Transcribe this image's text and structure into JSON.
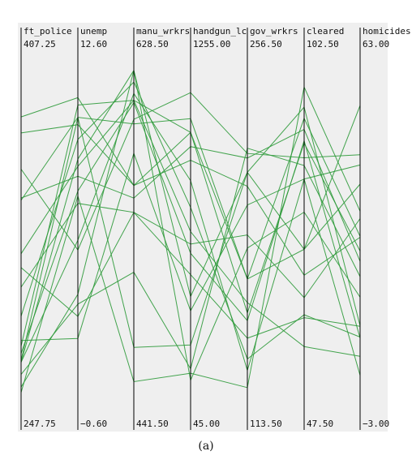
{
  "caption": "(a)",
  "colors": {
    "line": "#2e9a3a",
    "axis": "#000000",
    "background": "#efefef"
  },
  "chart_data": {
    "type": "parallel-coordinates",
    "axes": [
      {
        "name": "ft_police",
        "max": "407.25",
        "min": "247.75",
        "vmax": 407.25,
        "vmin": 247.75
      },
      {
        "name": "unemp",
        "max": "12.60",
        "min": "−0.60",
        "vmax": 12.6,
        "vmin": -0.6
      },
      {
        "name": "manu_wrkrs",
        "max": "628.50",
        "min": "441.50",
        "vmax": 628.5,
        "vmin": 441.5
      },
      {
        "name": "handgun_lc",
        "max": "1255.00",
        "min": "45.00",
        "vmax": 1255.0,
        "vmin": 45.0
      },
      {
        "name": "gov_wrkrs",
        "max": "256.50",
        "min": "113.50",
        "vmax": 256.5,
        "vmin": 113.5
      },
      {
        "name": "cleared",
        "max": "102.50",
        "min": "47.50",
        "vmax": 102.5,
        "vmin": 47.5
      },
      {
        "name": "homicides",
        "max": "63.00",
        "min": "−3.00",
        "vmax": 63.0,
        "vmin": -3.0
      }
    ],
    "records": [
      [
        383.3,
        11.4,
        560.9,
        1015.3,
        163.6,
        71.8,
        39.4
      ],
      [
        375.4,
        10.3,
        560.9,
        911.7,
        204.4,
        67.4,
        28.6
      ],
      [
        357.6,
        5.2,
        599.0,
        1163.5,
        218.9,
        87.3,
        45.4
      ],
      [
        343.4,
        8.2,
        553.6,
        962.5,
        216.9,
        92.1,
        23.7
      ],
      [
        342.3,
        10.6,
        596.4,
        1066.6,
        163.6,
        94.0,
        28.8
      ],
      [
        316.0,
        8.6,
        610.0,
        1015.3,
        148.6,
        89.8,
        25.8
      ],
      [
        309.2,
        2.5,
        545.4,
        599.0,
        183.0,
        63.6,
        32.4
      ],
      [
        299.6,
        7.1,
        545.4,
        484.7,
        137.5,
        60.2,
        10.5
      ],
      [
        285.3,
        9.7,
        620.5,
        735.6,
        128.3,
        60.7,
        8.3
      ],
      [
        270.6,
        11.1,
        610.0,
        645.6,
        153.2,
        55.3,
        4.4
      ],
      [
        263.6,
        10.6,
        467.6,
        222.6,
        210.6,
        71.8,
        55.4
      ],
      [
        273.4,
        1.6,
        579.4,
        350.0,
        196.2,
        83.7,
        43.3
      ],
      [
        267.0,
        7.6,
        608.7,
        564.6,
        145.2,
        90.2,
        8.1
      ],
      [
        262.7,
        5.6,
        613.9,
        835.5,
        123.3,
        83.7,
        0.5
      ],
      [
        262.6,
        8.9,
        627.2,
        403.1,
        210.6,
        95.9,
        10.6
      ],
      [
        250.5,
        3.4,
        627.2,
        90.9,
        177.2,
        78.1,
        16.4
      ],
      [
        256.7,
        3.0,
        510.9,
        133.9,
        221.2,
        86.0,
        20.6
      ],
      [
        247.8,
        7.4,
        447.8,
        117.4,
        115.7,
        99.3,
        33.9
      ]
    ]
  }
}
